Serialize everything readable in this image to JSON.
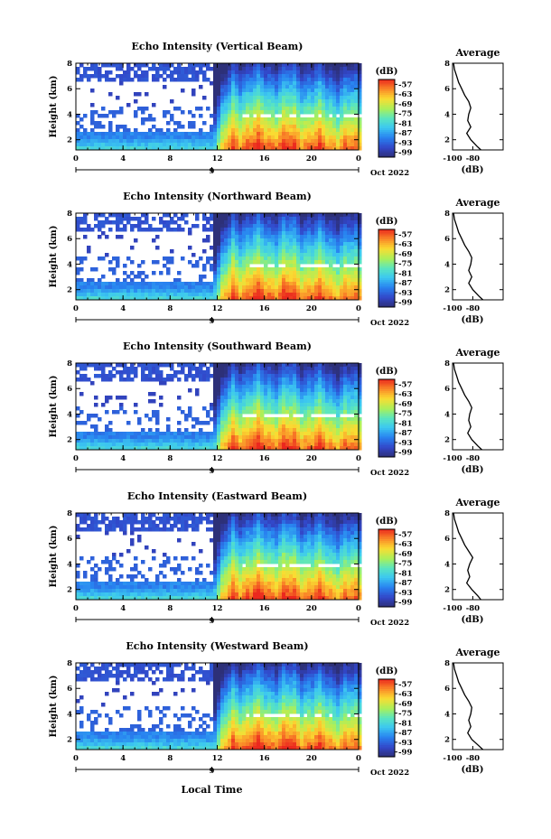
{
  "figure": {
    "xlabel": "Local Time",
    "colorbar_unit": "(dB)",
    "average_title": "Average",
    "average_xlabel": "(dB)"
  },
  "chart_data": [
    {
      "type": "heatmap",
      "title": "Echo Intensity (Vertical Beam)",
      "ylabel": "Height (km)",
      "x_ticks": [
        "0",
        "4",
        "8",
        "12",
        "16",
        "20",
        "0"
      ],
      "y_ticks": [
        "2",
        "4",
        "6",
        "8"
      ],
      "xlim": [
        0,
        24
      ],
      "ylim": [
        1.2,
        8.0
      ],
      "date_tick": "9",
      "date_label": "Oct 2022",
      "colorbar": {
        "ticks": [
          "-57",
          "-63",
          "-69",
          "-75",
          "-81",
          "-87",
          "-93",
          "-99"
        ],
        "range": [
          -102,
          -54
        ]
      },
      "average": {
        "xlim": [
          -100,
          -50
        ],
        "ylim": [
          1.2,
          8.0
        ],
        "x_ticks": [
          "-100",
          "-80"
        ],
        "y_ticks": [
          "2",
          "4",
          "6",
          "8"
        ],
        "height": [
          1.2,
          1.5,
          2.0,
          2.5,
          3.0,
          3.5,
          4.0,
          4.5,
          5.0,
          5.5,
          6.0,
          6.5,
          7.0,
          7.5,
          8.0
        ],
        "value": [
          -72,
          -76,
          -82,
          -86,
          -82,
          -85,
          -84,
          -82,
          -84,
          -88,
          -91,
          -94,
          -96,
          -98,
          -99
        ]
      }
    },
    {
      "type": "heatmap",
      "title": "Echo Intensity (Northward Beam)",
      "ylabel": "Height (km)",
      "x_ticks": [
        "0",
        "4",
        "8",
        "12",
        "16",
        "20",
        "0"
      ],
      "y_ticks": [
        "2",
        "4",
        "6",
        "8"
      ],
      "xlim": [
        0,
        24
      ],
      "ylim": [
        1.2,
        8.0
      ],
      "date_tick": "9",
      "date_label": "Oct 2022",
      "colorbar": {
        "ticks": [
          "-57",
          "-63",
          "-69",
          "-75",
          "-81",
          "-87",
          "-93",
          "-99"
        ],
        "range": [
          -102,
          -54
        ]
      },
      "average": {
        "xlim": [
          -100,
          -50
        ],
        "ylim": [
          1.2,
          8.0
        ],
        "x_ticks": [
          "-100",
          "-80"
        ],
        "y_ticks": [
          "2",
          "4",
          "6",
          "8"
        ],
        "height": [
          1.2,
          1.5,
          2.0,
          2.5,
          3.0,
          3.5,
          4.0,
          4.5,
          5.0,
          5.5,
          6.0,
          6.5,
          7.0,
          7.5,
          8.0
        ],
        "value": [
          -70,
          -74,
          -80,
          -84,
          -81,
          -84,
          -82,
          -81,
          -84,
          -88,
          -91,
          -94,
          -96,
          -98,
          -99
        ]
      }
    },
    {
      "type": "heatmap",
      "title": "Echo Intensity (Southward Beam)",
      "ylabel": "Height (km)",
      "x_ticks": [
        "0",
        "4",
        "8",
        "12",
        "16",
        "20",
        "0"
      ],
      "y_ticks": [
        "2",
        "4",
        "6",
        "8"
      ],
      "xlim": [
        0,
        24
      ],
      "ylim": [
        1.2,
        8.0
      ],
      "date_tick": "9",
      "date_label": "Oct 2022",
      "colorbar": {
        "ticks": [
          "-57",
          "-63",
          "-69",
          "-75",
          "-81",
          "-87",
          "-93",
          "-99"
        ],
        "range": [
          -102,
          -54
        ]
      },
      "average": {
        "xlim": [
          -100,
          -50
        ],
        "ylim": [
          1.2,
          8.0
        ],
        "x_ticks": [
          "-100",
          "-80"
        ],
        "y_ticks": [
          "2",
          "4",
          "6",
          "8"
        ],
        "height": [
          1.2,
          1.5,
          2.0,
          2.5,
          3.0,
          3.5,
          4.0,
          4.5,
          5.0,
          5.5,
          6.0,
          6.5,
          7.0,
          7.5,
          8.0
        ],
        "value": [
          -71,
          -75,
          -81,
          -85,
          -82,
          -84,
          -83,
          -81,
          -84,
          -88,
          -91,
          -94,
          -96,
          -98,
          -99
        ]
      }
    },
    {
      "type": "heatmap",
      "title": "Echo Intensity (Eastward Beam)",
      "ylabel": "Height (km)",
      "x_ticks": [
        "0",
        "4",
        "8",
        "12",
        "16",
        "20",
        "0"
      ],
      "y_ticks": [
        "2",
        "4",
        "6",
        "8"
      ],
      "xlim": [
        0,
        24
      ],
      "ylim": [
        1.2,
        8.0
      ],
      "date_tick": "9",
      "date_label": "Oct 2022",
      "colorbar": {
        "ticks": [
          "-57",
          "-63",
          "-69",
          "-75",
          "-81",
          "-87",
          "-93",
          "-99"
        ],
        "range": [
          -102,
          -54
        ]
      },
      "average": {
        "xlim": [
          -100,
          -50
        ],
        "ylim": [
          1.2,
          8.0
        ],
        "x_ticks": [
          "-100",
          "-80"
        ],
        "y_ticks": [
          "2",
          "4",
          "6",
          "8"
        ],
        "height": [
          1.2,
          1.5,
          2.0,
          2.5,
          3.0,
          3.5,
          4.0,
          4.5,
          5.0,
          5.5,
          6.0,
          6.5,
          7.0,
          7.5,
          8.0
        ],
        "value": [
          -72,
          -75,
          -81,
          -86,
          -83,
          -85,
          -83,
          -80,
          -84,
          -88,
          -91,
          -94,
          -96,
          -98,
          -99
        ]
      }
    },
    {
      "type": "heatmap",
      "title": "Echo Intensity (Westward Beam)",
      "ylabel": "Height (km)",
      "x_ticks": [
        "0",
        "4",
        "8",
        "12",
        "16",
        "20",
        "0"
      ],
      "y_ticks": [
        "2",
        "4",
        "6",
        "8"
      ],
      "xlim": [
        0,
        24
      ],
      "ylim": [
        1.2,
        8.0
      ],
      "date_tick": "9",
      "date_label": "Oct 2022",
      "colorbar": {
        "ticks": [
          "-57",
          "-63",
          "-69",
          "-75",
          "-81",
          "-87",
          "-93",
          "-99"
        ],
        "range": [
          -102,
          -54
        ]
      },
      "average": {
        "xlim": [
          -100,
          -50
        ],
        "ylim": [
          1.2,
          8.0
        ],
        "x_ticks": [
          "-100",
          "-80"
        ],
        "y_ticks": [
          "2",
          "4",
          "6",
          "8"
        ],
        "height": [
          1.2,
          1.5,
          2.0,
          2.5,
          3.0,
          3.5,
          4.0,
          4.5,
          5.0,
          5.5,
          6.0,
          6.5,
          7.0,
          7.5,
          8.0
        ],
        "value": [
          -70,
          -74,
          -81,
          -85,
          -82,
          -84,
          -82,
          -81,
          -84,
          -88,
          -91,
          -94,
          -96,
          -98,
          -99
        ]
      }
    }
  ]
}
